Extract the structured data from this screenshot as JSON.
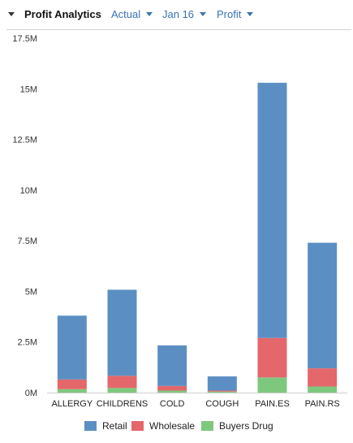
{
  "header": {
    "title": "Profit Analytics",
    "scenario": "Actual",
    "period": "Jan 16",
    "measure": "Profit"
  },
  "colors": {
    "retail": "#5b8fc3",
    "wholesale": "#e4676b",
    "buyers_drug": "#7ec87e",
    "accent": "#3a73b3"
  },
  "icons": {
    "collapse": "caret-down-icon",
    "dropdown": "chevron-down-icon"
  },
  "chart_data": {
    "type": "bar",
    "stacked": true,
    "categories": [
      "ALLERGY",
      "CHILDRENS",
      "COLD",
      "COUGH",
      "PAIN.ES",
      "PAIN.RS"
    ],
    "series": [
      {
        "name": "Retail",
        "values": [
          3.15,
          4.25,
          2.0,
          0.7,
          12.6,
          6.2
        ]
      },
      {
        "name": "Wholesale",
        "values": [
          0.48,
          0.6,
          0.23,
          0.05,
          1.95,
          0.9
        ]
      },
      {
        "name": "Buyers Drug",
        "values": [
          0.17,
          0.23,
          0.1,
          0.05,
          0.75,
          0.3
        ]
      }
    ],
    "y_ticks": [
      "0M",
      "2.5M",
      "5M",
      "7.5M",
      "10M",
      "12.5M",
      "15M",
      "17.5M"
    ],
    "ylim": [
      0,
      17.5
    ],
    "grid": false,
    "legend_position": "bottom"
  }
}
